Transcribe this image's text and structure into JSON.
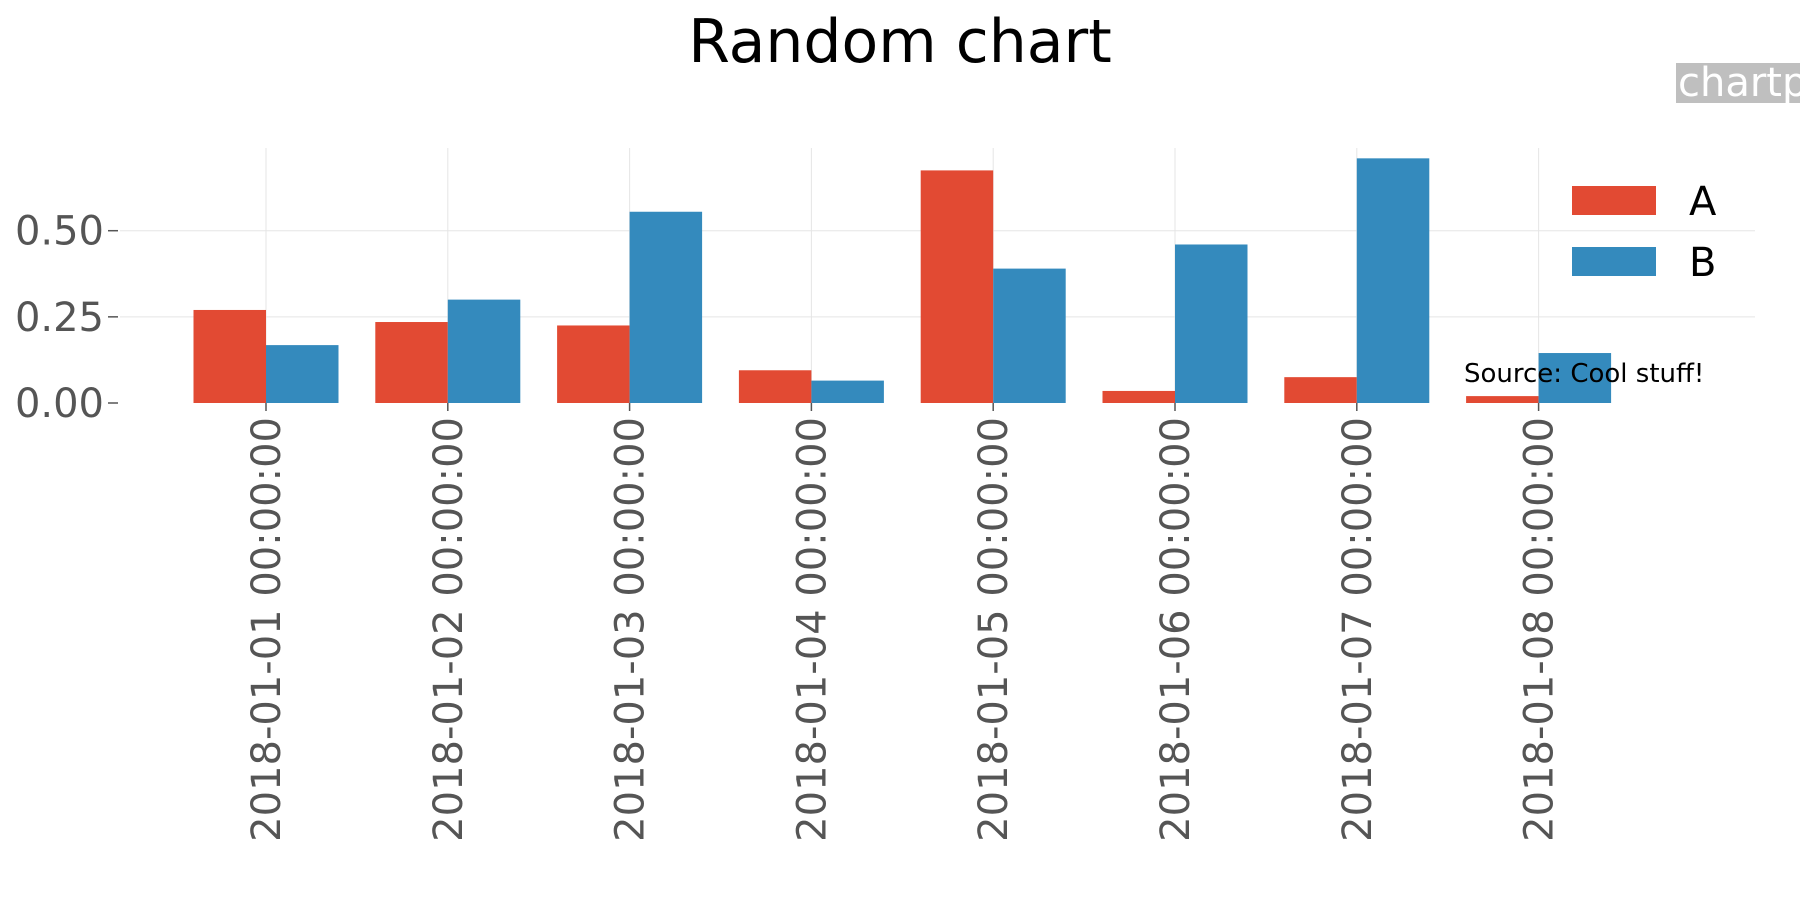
{
  "chart_data": {
    "type": "bar",
    "title": "Random chart",
    "xlabel": "",
    "ylabel": "",
    "categories": [
      "2018-01-01 00:00:00",
      "2018-01-02 00:00:00",
      "2018-01-03 00:00:00",
      "2018-01-04 00:00:00",
      "2018-01-05 00:00:00",
      "2018-01-06 00:00:00",
      "2018-01-07 00:00:00",
      "2018-01-08 00:00:00"
    ],
    "series": [
      {
        "name": "A",
        "color": "#E24A33",
        "values": [
          0.27,
          0.235,
          0.225,
          0.095,
          0.675,
          0.035,
          0.075,
          0.02
        ]
      },
      {
        "name": "B",
        "color": "#348ABD",
        "values": [
          0.168,
          0.3,
          0.555,
          0.065,
          0.39,
          0.46,
          0.71,
          0.145
        ]
      }
    ],
    "ylim": [
      0,
      0.74
    ],
    "yticks": [
      0.0,
      0.25,
      0.5
    ],
    "ytick_labels": [
      "0.00",
      "0.25",
      "0.50"
    ],
    "grid": true,
    "legend_position": "top-right",
    "annotation": "Source: Cool stuff!",
    "watermark": "chartpy"
  }
}
